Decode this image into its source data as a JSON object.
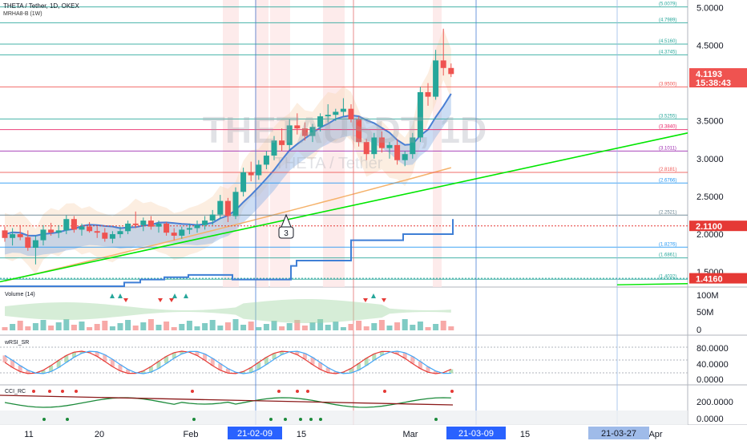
{
  "legend": {
    "title": "THETA / Tether, 1D, OKEX",
    "sub": "MRHA8-B (1W)"
  },
  "watermark": {
    "main": "THETAUSDT, 1D",
    "sub": "THETA / Tether"
  },
  "price_badges": {
    "last_price": "4.1193",
    "countdown": "15:38:43",
    "line_price": "2.1100",
    "low_price": "1.4160"
  },
  "colors": {
    "up": "#26a69a",
    "down": "#ef5350",
    "trend": "#00e600",
    "ma_blue": "#4a7fd4",
    "ma_orange": "#f5b26b",
    "step_blue": "#3f7fd6"
  },
  "annotation": {
    "marker_label": "3"
  },
  "indicators": {
    "volume": {
      "label": "Volume (14)",
      "ticks": [
        "100M",
        "50M",
        "0"
      ]
    },
    "wrsi": {
      "label": "wRSI_SR",
      "ticks": [
        "80.0000",
        "40.0000",
        "0.0000"
      ]
    },
    "cci": {
      "label": "CCI_RC",
      "ticks": [
        "200.0000",
        "0.0000"
      ]
    }
  },
  "chart_data": {
    "type": "candlestick",
    "title": "THETA / Tether, 1D, OKEX",
    "ylim": [
      1.3,
      5.1
    ],
    "y_ticks": [
      "5.0000",
      "4.5000",
      "4.0000",
      "3.5000",
      "3.0000",
      "2.5000",
      "2.0000",
      "1.5000"
    ],
    "x_ticks": [
      "11",
      "20",
      "Feb",
      "15",
      "Mar",
      "15",
      "Apr"
    ],
    "date_badges": [
      "21-02-09",
      "21-03-09",
      "21-03-27"
    ],
    "levels": [
      {
        "label": "5.0079",
        "value": 5.0079,
        "color": "#26a69a"
      },
      {
        "label": "4.7989",
        "value": 4.7989,
        "color": "#26a69a"
      },
      {
        "label": "4.5160",
        "value": 4.516,
        "color": "#26a69a"
      },
      {
        "label": "4.3745",
        "value": 4.3745,
        "color": "#26a69a"
      },
      {
        "label": "3.9500",
        "value": 3.95,
        "color": "#ef5350"
      },
      {
        "label": "3.5255",
        "value": 3.5255,
        "color": "#26a69a"
      },
      {
        "label": "3.3840",
        "value": 3.384,
        "color": "#e91e63"
      },
      {
        "label": "3.1011",
        "value": 3.1011,
        "color": "#9c27b0"
      },
      {
        "label": "2.8181",
        "value": 2.8181,
        "color": "#ef5350"
      },
      {
        "label": "2.6766",
        "value": 2.6766,
        "color": "#2196f3"
      },
      {
        "label": "2.2521",
        "value": 2.2521,
        "color": "#607d8b"
      },
      {
        "label": "1.8276",
        "value": 1.8276,
        "color": "#2196f3"
      },
      {
        "label": "1.6861",
        "value": 1.6861,
        "color": "#26a69a"
      },
      {
        "label": "1.4032",
        "value": 1.4032,
        "color": "#26a69a"
      }
    ],
    "candles": [
      [
        2.05,
        2.1,
        1.9,
        1.95
      ],
      [
        1.95,
        2.08,
        1.85,
        2.0
      ],
      [
        2.0,
        2.12,
        1.92,
        1.96
      ],
      [
        1.96,
        2.05,
        1.78,
        1.82
      ],
      [
        1.82,
        1.98,
        1.6,
        1.92
      ],
      [
        1.92,
        2.12,
        1.85,
        2.06
      ],
      [
        2.06,
        2.15,
        1.98,
        2.02
      ],
      [
        2.02,
        2.12,
        1.95,
        2.05
      ],
      [
        2.05,
        2.25,
        2.0,
        2.2
      ],
      [
        2.2,
        2.24,
        2.02,
        2.06
      ],
      [
        2.06,
        2.14,
        1.98,
        2.1
      ],
      [
        2.1,
        2.16,
        2.02,
        2.04
      ],
      [
        2.04,
        2.1,
        1.95,
        2.02
      ],
      [
        2.02,
        2.08,
        1.9,
        1.94
      ],
      [
        1.94,
        2.04,
        1.88,
        2.0
      ],
      [
        2.0,
        2.1,
        1.95,
        2.04
      ],
      [
        2.04,
        2.18,
        2.0,
        2.14
      ],
      [
        2.14,
        2.3,
        2.08,
        2.12
      ],
      [
        2.12,
        2.22,
        2.04,
        2.18
      ],
      [
        2.18,
        2.24,
        2.06,
        2.1
      ],
      [
        2.1,
        2.18,
        2.02,
        2.14
      ],
      [
        2.14,
        2.16,
        1.98,
        2.02
      ],
      [
        2.02,
        2.08,
        1.92,
        1.98
      ],
      [
        1.98,
        2.1,
        1.94,
        2.06
      ],
      [
        2.06,
        2.14,
        2.0,
        2.08
      ],
      [
        2.08,
        2.18,
        2.02,
        2.12
      ],
      [
        2.12,
        2.24,
        2.06,
        2.18
      ],
      [
        2.18,
        2.32,
        2.12,
        2.26
      ],
      [
        2.26,
        2.52,
        2.2,
        2.44
      ],
      [
        2.44,
        2.48,
        2.16,
        2.24
      ],
      [
        2.24,
        2.62,
        2.2,
        2.56
      ],
      [
        2.56,
        2.88,
        2.5,
        2.82
      ],
      [
        2.82,
        2.96,
        2.7,
        2.78
      ],
      [
        2.78,
        2.98,
        2.72,
        2.92
      ],
      [
        2.92,
        3.1,
        2.86,
        3.04
      ],
      [
        3.04,
        3.3,
        2.98,
        3.24
      ],
      [
        3.24,
        3.4,
        3.1,
        3.18
      ],
      [
        3.18,
        3.52,
        3.12,
        3.44
      ],
      [
        3.44,
        3.6,
        3.32,
        3.4
      ],
      [
        3.4,
        3.48,
        3.24,
        3.3
      ],
      [
        3.3,
        3.46,
        3.22,
        3.42
      ],
      [
        3.42,
        3.6,
        3.36,
        3.56
      ],
      [
        3.56,
        3.72,
        3.48,
        3.58
      ],
      [
        3.58,
        3.66,
        3.5,
        3.62
      ],
      [
        3.62,
        3.8,
        3.56,
        3.66
      ],
      [
        3.66,
        3.72,
        3.48,
        3.52
      ],
      [
        3.52,
        3.56,
        3.16,
        3.22
      ],
      [
        3.22,
        3.26,
        2.98,
        3.06
      ],
      [
        3.06,
        3.34,
        3.0,
        3.28
      ],
      [
        3.28,
        3.36,
        3.08,
        3.14
      ],
      [
        3.14,
        3.22,
        3.0,
        3.18
      ],
      [
        3.18,
        3.26,
        2.92,
        2.98
      ],
      [
        2.98,
        3.1,
        2.9,
        3.06
      ],
      [
        3.06,
        3.34,
        3.0,
        3.28
      ],
      [
        3.28,
        3.95,
        3.22,
        3.88
      ],
      [
        3.88,
        4.0,
        3.7,
        3.82
      ],
      [
        3.82,
        4.44,
        3.78,
        4.3
      ],
      [
        4.3,
        4.72,
        4.1,
        4.2
      ],
      [
        4.2,
        4.26,
        4.08,
        4.12
      ]
    ]
  }
}
